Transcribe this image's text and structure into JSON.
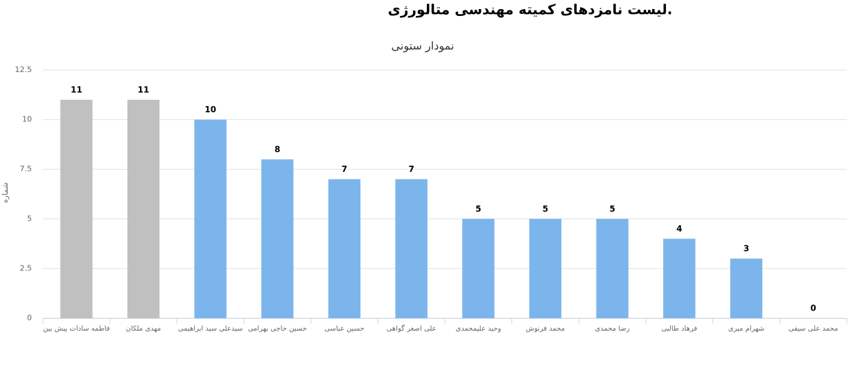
{
  "chart_data": {
    "type": "bar",
    "title": "لیست نامزدهای کمیته مهندسی متالورژی.",
    "subtitle": "نمودار ستونی",
    "y_label": "شماره",
    "categories": [
      "فاطمه سادات پیش بین",
      "مهدی ملکان",
      "سیدعلی سید ابراهیمی",
      "حسین حاجی بهرامی",
      "حسین عباسی",
      "علی اصغر گواهی",
      "وحید علیمحمدی",
      "محمد فرنوش",
      "رضا محمدی",
      "فرهاد طالبی",
      "شهرام میری",
      "محمد علی سیفی"
    ],
    "values": [
      11,
      11,
      10,
      8,
      7,
      7,
      5,
      5,
      5,
      4,
      3,
      0
    ],
    "colors": [
      "#c0c0c0",
      "#c0c0c0",
      "#7cb5ec",
      "#7cb5ec",
      "#7cb5ec",
      "#7cb5ec",
      "#7cb5ec",
      "#7cb5ec",
      "#7cb5ec",
      "#7cb5ec",
      "#7cb5ec",
      "#7cb5ec"
    ],
    "ylim": [
      0,
      12.5
    ],
    "yticks": [
      0,
      2.5,
      5,
      7.5,
      10,
      12.5
    ],
    "grid": true
  }
}
